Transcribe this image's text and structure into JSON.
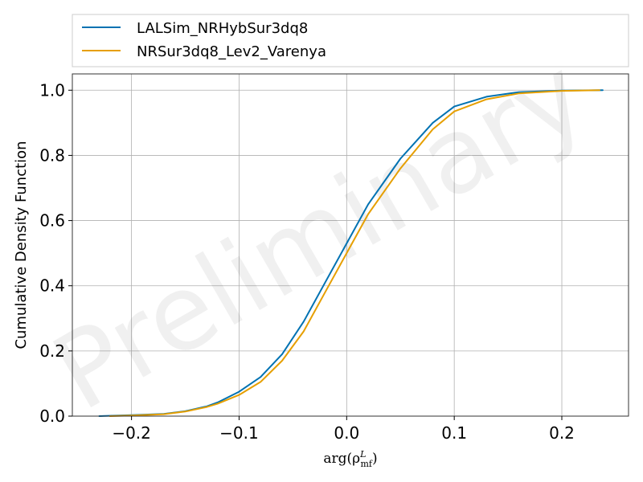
{
  "chart_data": {
    "type": "line",
    "title": "",
    "xlabel": "arg(ρ_mf^L)",
    "ylabel": "Cumulative Density Function",
    "xlim": [
      -0.255,
      0.262
    ],
    "ylim": [
      0.0,
      1.05
    ],
    "xticks": [
      -0.2,
      -0.1,
      0.0,
      0.1,
      0.2
    ],
    "xtick_labels": [
      "−0.2",
      "−0.1",
      "0.0",
      "0.1",
      "0.2"
    ],
    "yticks": [
      0.0,
      0.2,
      0.4,
      0.6,
      0.8,
      1.0
    ],
    "ytick_labels": [
      "0.0",
      "0.2",
      "0.4",
      "0.6",
      "0.8",
      "1.0"
    ],
    "grid": true,
    "legend_position": "top-outside",
    "watermark": "Preliminary",
    "series": [
      {
        "name": "LALSim_NRHybSur3dq8",
        "color": "#0072b2",
        "x": [
          -0.23,
          -0.2,
          -0.17,
          -0.15,
          -0.13,
          -0.12,
          -0.1,
          -0.08,
          -0.06,
          -0.04,
          -0.02,
          0.0,
          0.02,
          0.05,
          0.08,
          0.1,
          0.13,
          0.16,
          0.2,
          0.238
        ],
        "y": [
          0.0,
          0.003,
          0.007,
          0.015,
          0.03,
          0.042,
          0.075,
          0.12,
          0.19,
          0.29,
          0.41,
          0.53,
          0.65,
          0.79,
          0.9,
          0.95,
          0.98,
          0.994,
          0.999,
          1.0
        ]
      },
      {
        "name": "NRSur3dq8_Lev2_Varenya",
        "color": "#e69f00",
        "x": [
          -0.22,
          -0.2,
          -0.17,
          -0.15,
          -0.13,
          -0.12,
          -0.1,
          -0.08,
          -0.06,
          -0.04,
          -0.02,
          0.0,
          0.02,
          0.05,
          0.08,
          0.1,
          0.13,
          0.16,
          0.2,
          0.235
        ],
        "y": [
          0.0,
          0.002,
          0.006,
          0.014,
          0.028,
          0.038,
          0.065,
          0.105,
          0.17,
          0.26,
          0.38,
          0.5,
          0.62,
          0.76,
          0.88,
          0.935,
          0.972,
          0.99,
          0.998,
          1.0
        ]
      }
    ]
  }
}
